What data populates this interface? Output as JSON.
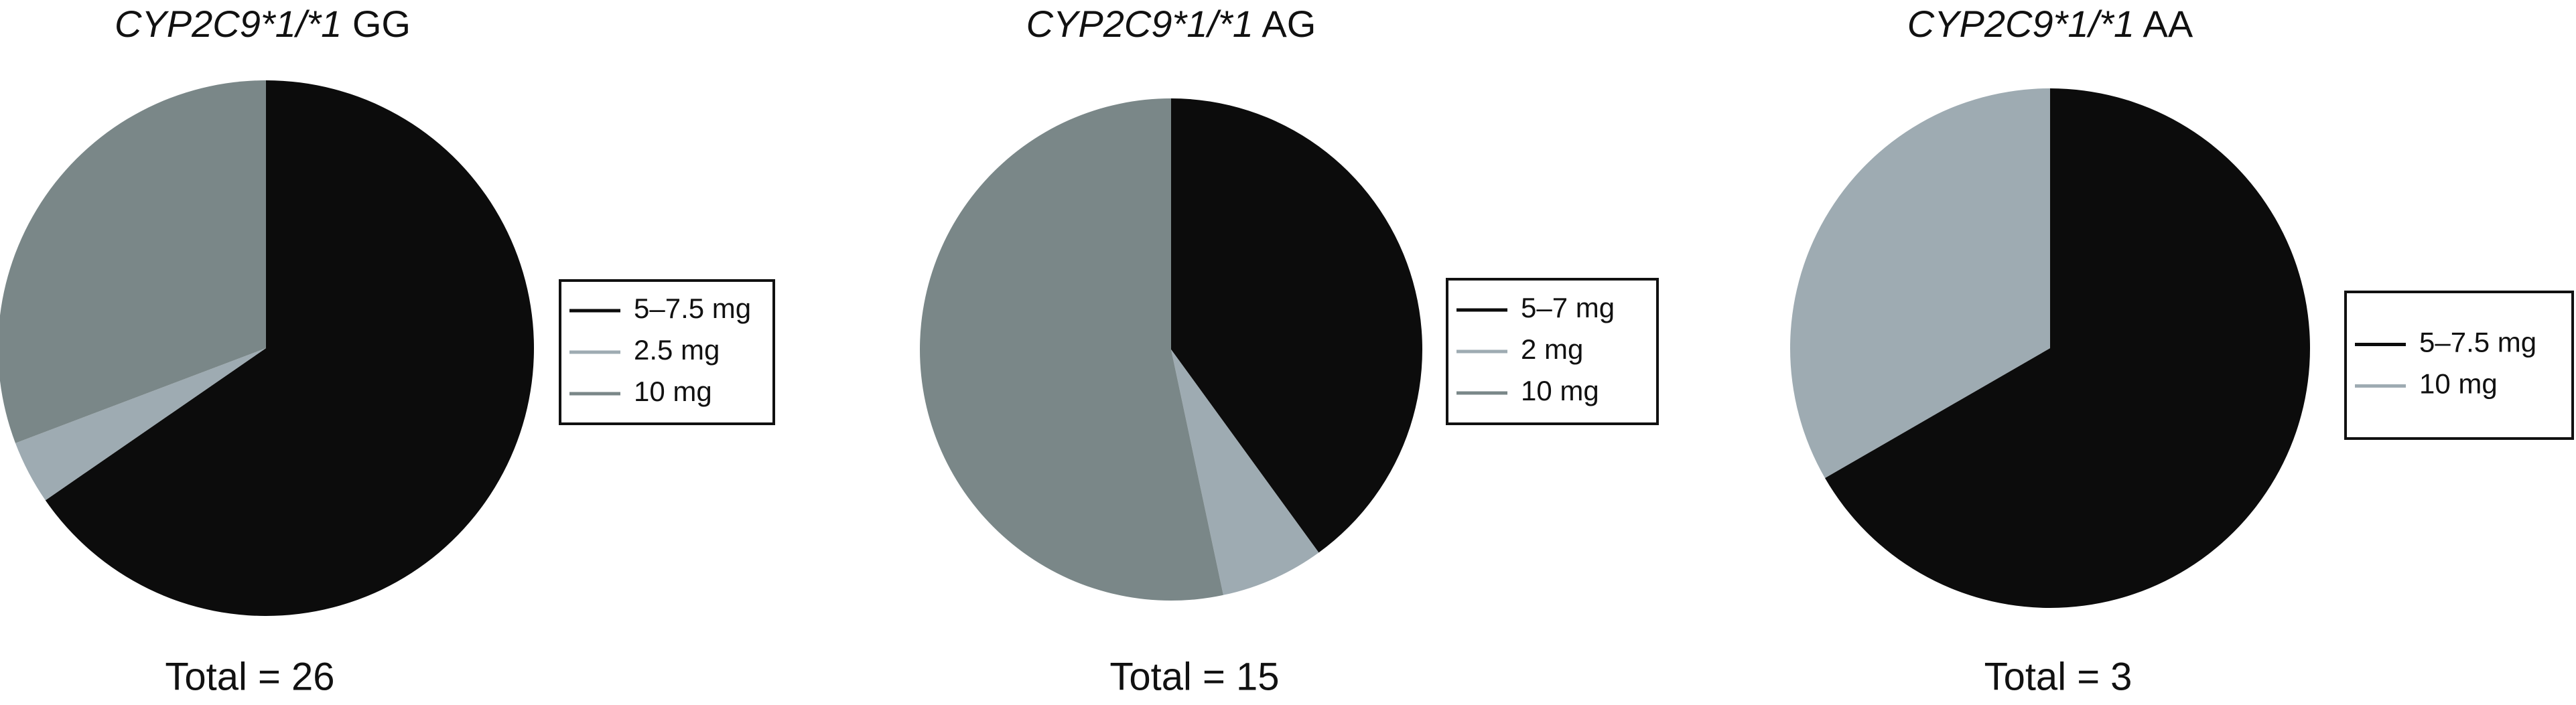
{
  "chart_data": [
    {
      "type": "pie",
      "title_gene": "CYP2C9*1/*1",
      "title_genotype": "GG",
      "categories": [
        "5–7.5 mg",
        "2.5 mg",
        "10 mg"
      ],
      "values": [
        17,
        1,
        8
      ],
      "colors": [
        "#0c0c0c",
        "#9eabb2",
        "#7a8788"
      ],
      "total_label": "Total = 26"
    },
    {
      "type": "pie",
      "title_gene": "CYP2C9*1/*1",
      "title_genotype": "AG",
      "categories": [
        "5–7 mg",
        "2 mg",
        "10 mg"
      ],
      "values": [
        6,
        1,
        8
      ],
      "colors": [
        "#0c0c0c",
        "#9eabb2",
        "#7a8788"
      ],
      "total_label": "Total = 15"
    },
    {
      "type": "pie",
      "title_gene": "CYP2C9*1/*1",
      "title_genotype": "AA",
      "categories": [
        "5–7.5 mg",
        "10 mg"
      ],
      "values": [
        2,
        1
      ],
      "colors": [
        "#0c0c0c",
        "#9eabb2"
      ],
      "total_label": "Total = 3"
    }
  ]
}
